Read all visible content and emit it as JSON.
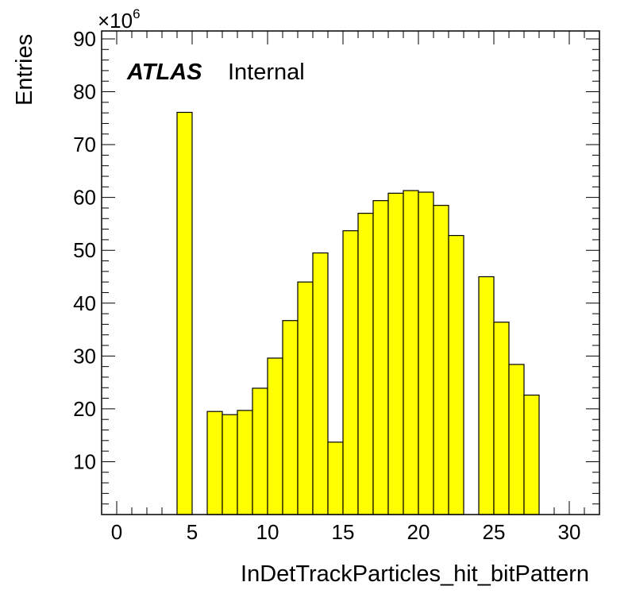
{
  "chart_data": {
    "type": "bar",
    "ylabel": "Entries",
    "xlabel": "InDetTrackParticles_hit_bitPattern",
    "y_multiplier": "×10",
    "y_multiplier_exp": "6",
    "experiment_label": "ATLAS",
    "status_label": "Internal",
    "xlim": [
      -1,
      32
    ],
    "ylim": [
      0,
      91.5
    ],
    "x_ticks": [
      0,
      5,
      10,
      15,
      20,
      25,
      30
    ],
    "y_ticks": [
      10,
      20,
      30,
      40,
      50,
      60,
      70,
      80,
      90
    ],
    "bin_width": 1,
    "bin_lows": [
      4,
      6,
      7,
      8,
      9,
      10,
      11,
      12,
      13,
      14,
      15,
      16,
      17,
      18,
      19,
      20,
      21,
      22,
      24,
      25,
      26,
      27
    ],
    "values": [
      76.1,
      19.5,
      18.9,
      19.7,
      23.9,
      29.6,
      36.7,
      44.0,
      49.5,
      13.7,
      53.7,
      57.0,
      59.4,
      60.8,
      61.3,
      61.0,
      58.5,
      52.8,
      45.0,
      36.4,
      28.4,
      22.6
    ],
    "fill_color": "#ffff00",
    "edge_color": "#000000",
    "grid": false
  }
}
